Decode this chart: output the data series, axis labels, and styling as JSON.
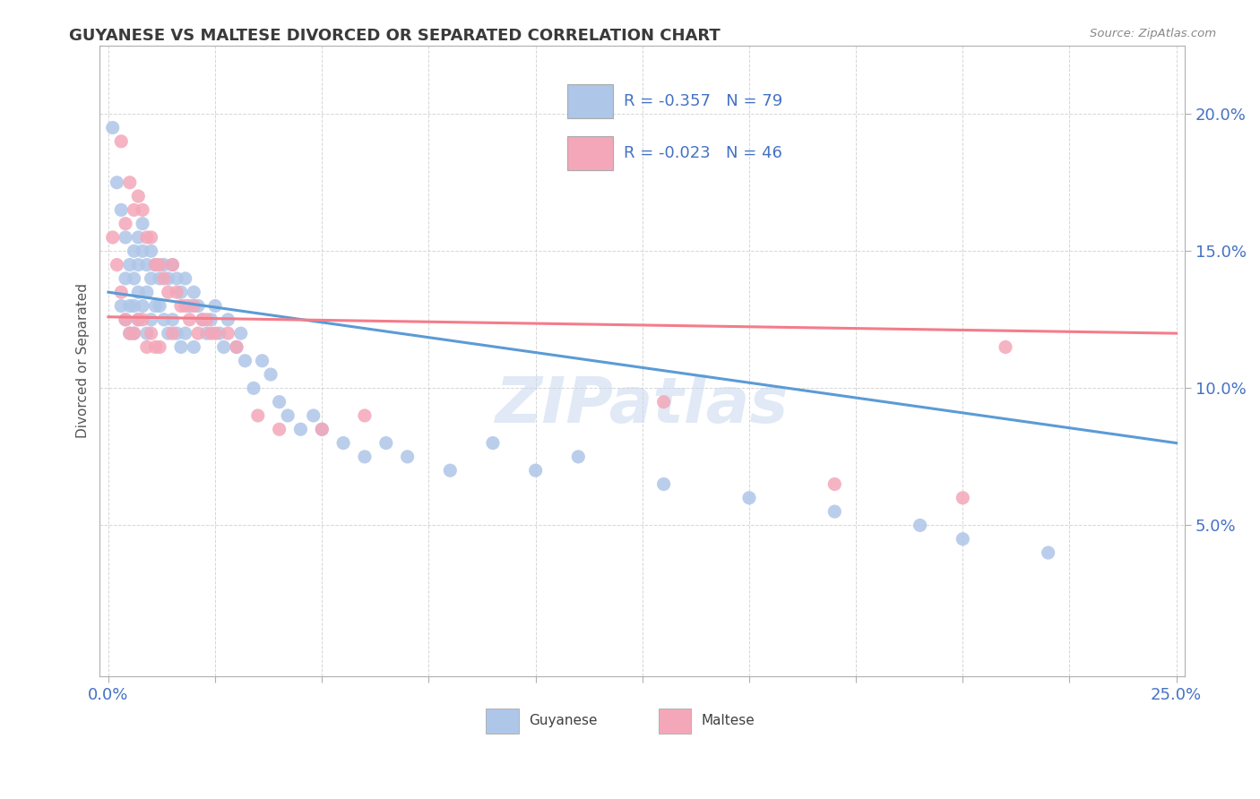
{
  "title": "GUYANESE VS MALTESE DIVORCED OR SEPARATED CORRELATION CHART",
  "source": "Source: ZipAtlas.com",
  "ylabel": "Divorced or Separated",
  "xlim": [
    -0.002,
    0.252
  ],
  "ylim": [
    -0.005,
    0.225
  ],
  "guyanese_R": -0.357,
  "guyanese_N": 79,
  "maltese_R": -0.023,
  "maltese_N": 46,
  "guyanese_color": "#aec6e8",
  "maltese_color": "#f4a7b9",
  "guyanese_line_color": "#5b9bd5",
  "maltese_line_color": "#f47c8a",
  "background_color": "#ffffff",
  "title_color": "#3a3a3a",
  "source_color": "#888888",
  "tick_color": "#4472c4",
  "watermark": "ZIPatlas",
  "grid_color": "#cccccc",
  "guyanese_scatter_x": [
    0.001,
    0.002,
    0.003,
    0.003,
    0.004,
    0.004,
    0.004,
    0.005,
    0.005,
    0.005,
    0.006,
    0.006,
    0.006,
    0.006,
    0.007,
    0.007,
    0.007,
    0.007,
    0.008,
    0.008,
    0.008,
    0.009,
    0.009,
    0.009,
    0.01,
    0.01,
    0.01,
    0.011,
    0.011,
    0.012,
    0.012,
    0.013,
    0.013,
    0.014,
    0.014,
    0.015,
    0.015,
    0.016,
    0.016,
    0.017,
    0.017,
    0.018,
    0.018,
    0.019,
    0.02,
    0.02,
    0.021,
    0.022,
    0.023,
    0.024,
    0.025,
    0.026,
    0.027,
    0.028,
    0.03,
    0.031,
    0.032,
    0.034,
    0.036,
    0.038,
    0.04,
    0.042,
    0.045,
    0.048,
    0.05,
    0.055,
    0.06,
    0.065,
    0.07,
    0.08,
    0.09,
    0.1,
    0.11,
    0.13,
    0.15,
    0.17,
    0.19,
    0.2,
    0.22
  ],
  "guyanese_scatter_y": [
    0.195,
    0.175,
    0.165,
    0.13,
    0.155,
    0.14,
    0.125,
    0.145,
    0.13,
    0.12,
    0.15,
    0.14,
    0.13,
    0.12,
    0.155,
    0.145,
    0.135,
    0.125,
    0.16,
    0.15,
    0.13,
    0.145,
    0.135,
    0.12,
    0.15,
    0.14,
    0.125,
    0.145,
    0.13,
    0.14,
    0.13,
    0.145,
    0.125,
    0.14,
    0.12,
    0.145,
    0.125,
    0.14,
    0.12,
    0.135,
    0.115,
    0.14,
    0.12,
    0.13,
    0.135,
    0.115,
    0.13,
    0.125,
    0.12,
    0.125,
    0.13,
    0.12,
    0.115,
    0.125,
    0.115,
    0.12,
    0.11,
    0.1,
    0.11,
    0.105,
    0.095,
    0.09,
    0.085,
    0.09,
    0.085,
    0.08,
    0.075,
    0.08,
    0.075,
    0.07,
    0.08,
    0.07,
    0.075,
    0.065,
    0.06,
    0.055,
    0.05,
    0.045,
    0.04
  ],
  "maltese_scatter_x": [
    0.001,
    0.002,
    0.003,
    0.003,
    0.004,
    0.004,
    0.005,
    0.005,
    0.006,
    0.006,
    0.007,
    0.007,
    0.008,
    0.008,
    0.009,
    0.009,
    0.01,
    0.01,
    0.011,
    0.011,
    0.012,
    0.012,
    0.013,
    0.014,
    0.015,
    0.015,
    0.016,
    0.017,
    0.018,
    0.019,
    0.02,
    0.021,
    0.022,
    0.023,
    0.024,
    0.025,
    0.028,
    0.03,
    0.035,
    0.04,
    0.05,
    0.06,
    0.13,
    0.17,
    0.2,
    0.21
  ],
  "maltese_scatter_y": [
    0.155,
    0.145,
    0.19,
    0.135,
    0.16,
    0.125,
    0.175,
    0.12,
    0.165,
    0.12,
    0.17,
    0.125,
    0.165,
    0.125,
    0.155,
    0.115,
    0.155,
    0.12,
    0.145,
    0.115,
    0.145,
    0.115,
    0.14,
    0.135,
    0.145,
    0.12,
    0.135,
    0.13,
    0.13,
    0.125,
    0.13,
    0.12,
    0.125,
    0.125,
    0.12,
    0.12,
    0.12,
    0.115,
    0.09,
    0.085,
    0.085,
    0.09,
    0.095,
    0.065,
    0.06,
    0.115
  ],
  "line_x_start": 0.0,
  "line_x_end": 0.25,
  "guyanese_line_y_start": 0.135,
  "guyanese_line_y_end": 0.08,
  "maltese_line_y_start": 0.126,
  "maltese_line_y_end": 0.12
}
